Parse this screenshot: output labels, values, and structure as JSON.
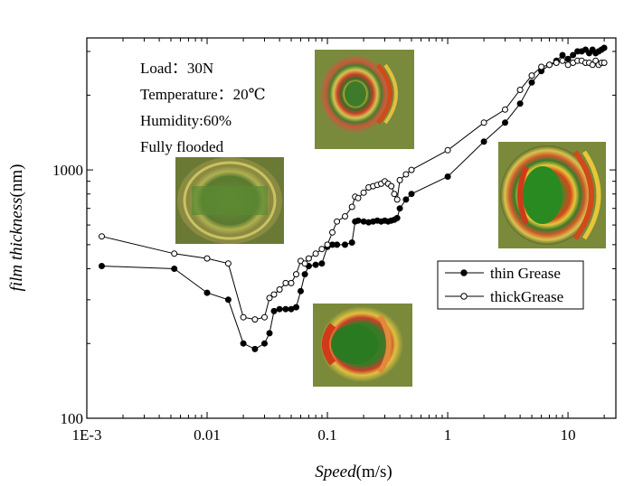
{
  "chart_data": {
    "type": "line",
    "xlabel": "Speed",
    "xlabel_unit": "(m/s)",
    "ylabel": "film thickness",
    "ylabel_unit": "(nm)",
    "xscale": "log",
    "yscale": "log",
    "xlim": [
      0.001,
      25
    ],
    "ylim": [
      100,
      3400
    ],
    "xticks": [
      {
        "value": 0.001,
        "label": "1E-3"
      },
      {
        "value": 0.01,
        "label": "0.01"
      },
      {
        "value": 0.1,
        "label": "0.1"
      },
      {
        "value": 1,
        "label": "1"
      },
      {
        "value": 10,
        "label": "10"
      }
    ],
    "yticks": [
      {
        "value": 100,
        "label": "100"
      },
      {
        "value": 1000,
        "label": "1000"
      }
    ],
    "legend_position": "right-middle",
    "annotations": [
      "Load：30N",
      "Temperature：20℃",
      "Humidity:60%",
      "Fully flooded"
    ],
    "series": [
      {
        "name": "thin Grease",
        "marker": "filled-circle",
        "x": [
          0.00133,
          0.00533,
          0.01,
          0.015,
          0.02,
          0.025,
          0.03,
          0.033,
          0.036,
          0.04,
          0.045,
          0.05,
          0.055,
          0.06,
          0.065,
          0.07,
          0.08,
          0.09,
          0.1,
          0.11,
          0.12,
          0.14,
          0.16,
          0.17,
          0.18,
          0.2,
          0.22,
          0.24,
          0.26,
          0.28,
          0.3,
          0.32,
          0.34,
          0.36,
          0.38,
          0.4,
          0.45,
          0.5,
          1.0,
          2.0,
          3.0,
          4.0,
          5.0,
          6.0,
          7.0,
          8.0,
          9.0,
          10.0,
          11.0,
          12.0,
          13.0,
          14.0,
          15.0,
          16.0,
          17.0,
          18.0,
          19.0,
          20.0
        ],
        "y": [
          410,
          400,
          320,
          300,
          200,
          190,
          200,
          220,
          270,
          275,
          275,
          275,
          280,
          325,
          380,
          410,
          415,
          420,
          490,
          500,
          500,
          500,
          510,
          620,
          625,
          620,
          615,
          620,
          625,
          620,
          625,
          620,
          625,
          630,
          640,
          700,
          760,
          800,
          940,
          1300,
          1550,
          1850,
          2250,
          2500,
          2650,
          2750,
          2900,
          2800,
          2900,
          3000,
          3000,
          3050,
          2950,
          3050,
          2950,
          3000,
          3050,
          3100
        ]
      },
      {
        "name": "thickGrease",
        "marker": "open-circle",
        "x": [
          0.00133,
          0.00533,
          0.01,
          0.015,
          0.02,
          0.025,
          0.03,
          0.033,
          0.036,
          0.04,
          0.045,
          0.05,
          0.055,
          0.06,
          0.065,
          0.07,
          0.08,
          0.09,
          0.1,
          0.11,
          0.12,
          0.14,
          0.16,
          0.17,
          0.18,
          0.2,
          0.22,
          0.24,
          0.26,
          0.28,
          0.3,
          0.32,
          0.34,
          0.36,
          0.38,
          0.4,
          0.45,
          0.5,
          1.0,
          2.0,
          3.0,
          4.0,
          5.0,
          6.0,
          7.0,
          8.0,
          9.0,
          10.0,
          11.0,
          12.0,
          13.0,
          14.0,
          15.0,
          16.0,
          17.0,
          18.0,
          19.0,
          20.0
        ],
        "y": [
          540,
          460,
          440,
          420,
          255,
          250,
          255,
          305,
          315,
          330,
          350,
          350,
          380,
          430,
          420,
          440,
          460,
          480,
          500,
          560,
          620,
          650,
          710,
          780,
          770,
          810,
          850,
          860,
          870,
          880,
          900,
          880,
          860,
          800,
          760,
          910,
          960,
          1000,
          1200,
          1550,
          1750,
          2100,
          2400,
          2600,
          2650,
          2700,
          2750,
          2650,
          2700,
          2750,
          2750,
          2700,
          2700,
          2650,
          2750,
          2650,
          2700,
          2700
        ]
      }
    ]
  }
}
